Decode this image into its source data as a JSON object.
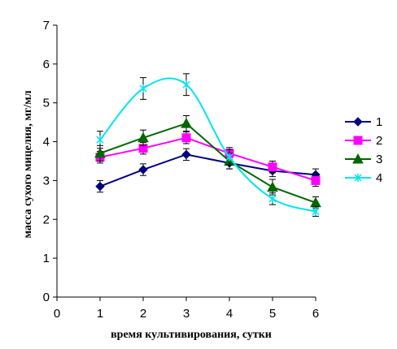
{
  "chart_data": {
    "type": "line",
    "title": "",
    "xlabel": "время культивирования, сутки",
    "ylabel": "масса сухого мицелия, мг/мл",
    "xlim": [
      0,
      6
    ],
    "ylim": [
      0,
      7
    ],
    "xticks": [
      0,
      1,
      2,
      3,
      4,
      5,
      6
    ],
    "yticks": [
      0,
      1,
      2,
      3,
      4,
      5,
      6,
      7
    ],
    "grid": false,
    "legend_position": "right",
    "x": [
      1,
      2,
      3,
      4,
      5,
      6
    ],
    "series": [
      {
        "name": "1",
        "color": "#000080",
        "marker": "diamond",
        "smooth": false,
        "values": [
          2.85,
          3.28,
          3.67,
          3.45,
          3.25,
          3.15
        ],
        "errors": [
          0.15,
          0.15,
          0.15,
          0.15,
          0.15,
          0.15
        ]
      },
      {
        "name": "2",
        "color": "#FF00FF",
        "marker": "square",
        "smooth": false,
        "values": [
          3.6,
          3.83,
          4.1,
          3.7,
          3.35,
          3.0
        ],
        "errors": [
          0.15,
          0.15,
          0.15,
          0.15,
          0.15,
          0.15
        ]
      },
      {
        "name": "3",
        "color": "#006600",
        "marker": "triangle",
        "smooth": false,
        "values": [
          3.7,
          4.1,
          4.47,
          3.5,
          2.83,
          2.43
        ],
        "errors": [
          0.2,
          0.2,
          0.2,
          0.2,
          0.2,
          0.15
        ]
      },
      {
        "name": "4",
        "color": "#00E5EE",
        "marker": "x",
        "smooth": true,
        "values": [
          4.05,
          5.37,
          5.47,
          3.6,
          2.53,
          2.2
        ],
        "errors": [
          0.22,
          0.28,
          0.28,
          0.2,
          0.15,
          0.12
        ]
      }
    ]
  }
}
